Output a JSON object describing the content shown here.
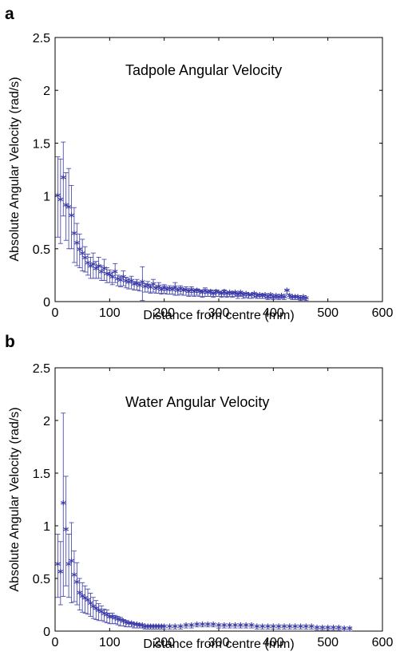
{
  "colors": {
    "series": "#3a3aa8",
    "axis": "#000000",
    "background": "#ffffff"
  },
  "chart_data": [
    {
      "panel": "a",
      "type": "scatter",
      "title": "Tadpole Angular Velocity",
      "xlabel": "Distance from centre (mm)",
      "ylabel": "Absolute Angular Velocity (rad/s)",
      "xlim": [
        0,
        600
      ],
      "ylim": [
        0,
        2.5
      ],
      "xticks": [
        "0",
        "100",
        "200",
        "300",
        "400",
        "500",
        "600"
      ],
      "yticks": [
        "0",
        "0.5",
        "1",
        "1.5",
        "2",
        "2.5"
      ],
      "marker": "*",
      "error_bars": true,
      "x": [
        5,
        10,
        15,
        20,
        25,
        30,
        35,
        40,
        45,
        50,
        55,
        60,
        65,
        70,
        75,
        80,
        85,
        90,
        95,
        100,
        105,
        110,
        115,
        120,
        125,
        130,
        135,
        140,
        145,
        150,
        155,
        160,
        165,
        170,
        175,
        180,
        185,
        190,
        195,
        200,
        205,
        210,
        215,
        220,
        225,
        230,
        235,
        240,
        245,
        250,
        255,
        260,
        265,
        270,
        275,
        280,
        285,
        290,
        295,
        300,
        305,
        310,
        315,
        320,
        325,
        330,
        335,
        340,
        345,
        350,
        355,
        360,
        365,
        370,
        375,
        380,
        385,
        390,
        395,
        400,
        405,
        410,
        415,
        420,
        425,
        430,
        435,
        440,
        445,
        450,
        455,
        460
      ],
      "y": [
        0.99,
        0.95,
        1.16,
        0.9,
        0.88,
        0.8,
        0.63,
        0.54,
        0.48,
        0.44,
        0.4,
        0.35,
        0.32,
        0.34,
        0.3,
        0.32,
        0.27,
        0.3,
        0.25,
        0.24,
        0.22,
        0.27,
        0.2,
        0.19,
        0.22,
        0.18,
        0.17,
        0.18,
        0.15,
        0.16,
        0.14,
        0.17,
        0.13,
        0.14,
        0.12,
        0.15,
        0.11,
        0.13,
        0.1,
        0.12,
        0.1,
        0.11,
        0.1,
        0.12,
        0.09,
        0.11,
        0.09,
        0.1,
        0.08,
        0.1,
        0.08,
        0.09,
        0.08,
        0.07,
        0.09,
        0.07,
        0.08,
        0.06,
        0.08,
        0.07,
        0.06,
        0.08,
        0.06,
        0.07,
        0.06,
        0.07,
        0.05,
        0.07,
        0.05,
        0.06,
        0.05,
        0.05,
        0.06,
        0.04,
        0.05,
        0.04,
        0.05,
        0.03,
        0.05,
        0.03,
        0.04,
        0.03,
        0.04,
        0.03,
        0.09,
        0.04,
        0.03,
        0.03,
        0.03,
        0.02,
        0.03,
        0.02
      ],
      "err": [
        0.38,
        0.4,
        0.35,
        0.32,
        0.38,
        0.3,
        0.26,
        0.2,
        0.16,
        0.15,
        0.12,
        0.1,
        0.1,
        0.12,
        0.08,
        0.1,
        0.07,
        0.1,
        0.07,
        0.06,
        0.06,
        0.09,
        0.05,
        0.05,
        0.07,
        0.05,
        0.05,
        0.06,
        0.04,
        0.05,
        0.04,
        0.16,
        0.04,
        0.05,
        0.04,
        0.06,
        0.03,
        0.05,
        0.03,
        0.04,
        0.03,
        0.04,
        0.03,
        0.06,
        0.03,
        0.04,
        0.03,
        0.04,
        0.03,
        0.04,
        0.03,
        0.03,
        0.03,
        0.03,
        0.04,
        0.02,
        0.03,
        0.02,
        0.03,
        0.02,
        0.02,
        0.03,
        0.02,
        0.02,
        0.02,
        0.02,
        0.02,
        0.02,
        0.02,
        0.02,
        0.02,
        0.02,
        0.02,
        0.01,
        0.02,
        0.01,
        0.02,
        0.01,
        0.02,
        0.01,
        0.01,
        0.01,
        0.01,
        0.01,
        0.02,
        0.01,
        0.01,
        0.01,
        0.01,
        0.01,
        0.01,
        0.01
      ]
    },
    {
      "panel": "b",
      "type": "scatter",
      "title": "Water Angular Velocity",
      "xlabel": "Distance from centre (mm)",
      "ylabel": "Absolute Angular Velocity (rad/s)",
      "xlim": [
        0,
        600
      ],
      "ylim": [
        0,
        2.5
      ],
      "xticks": [
        "0",
        "100",
        "200",
        "300",
        "400",
        "500",
        "600"
      ],
      "yticks": [
        "0",
        "0.5",
        "1",
        "1.5",
        "2",
        "2.5"
      ],
      "marker": "*",
      "error_bars": true,
      "x": [
        5,
        10,
        15,
        20,
        25,
        30,
        35,
        40,
        45,
        50,
        55,
        60,
        65,
        70,
        75,
        80,
        85,
        90,
        95,
        100,
        105,
        110,
        115,
        120,
        125,
        130,
        135,
        140,
        145,
        150,
        155,
        160,
        165,
        170,
        175,
        180,
        185,
        190,
        195,
        200,
        210,
        220,
        230,
        240,
        250,
        260,
        270,
        280,
        290,
        300,
        310,
        320,
        330,
        340,
        350,
        360,
        370,
        380,
        390,
        400,
        410,
        420,
        430,
        440,
        450,
        460,
        470,
        480,
        490,
        500,
        510,
        520,
        530,
        540
      ],
      "y": [
        0.62,
        0.55,
        1.2,
        0.95,
        0.62,
        0.65,
        0.52,
        0.45,
        0.35,
        0.32,
        0.3,
        0.28,
        0.25,
        0.22,
        0.2,
        0.18,
        0.17,
        0.15,
        0.14,
        0.12,
        0.12,
        0.11,
        0.1,
        0.09,
        0.08,
        0.07,
        0.06,
        0.06,
        0.05,
        0.05,
        0.04,
        0.04,
        0.03,
        0.03,
        0.03,
        0.03,
        0.03,
        0.03,
        0.03,
        0.03,
        0.03,
        0.03,
        0.03,
        0.04,
        0.04,
        0.05,
        0.05,
        0.05,
        0.05,
        0.04,
        0.04,
        0.04,
        0.04,
        0.04,
        0.04,
        0.04,
        0.03,
        0.03,
        0.03,
        0.03,
        0.03,
        0.03,
        0.03,
        0.03,
        0.03,
        0.03,
        0.03,
        0.02,
        0.02,
        0.02,
        0.02,
        0.02,
        0.01,
        0.01
      ],
      "err": [
        0.3,
        0.3,
        0.87,
        0.52,
        0.3,
        0.38,
        0.24,
        0.2,
        0.15,
        0.14,
        0.13,
        0.12,
        0.11,
        0.1,
        0.09,
        0.08,
        0.07,
        0.06,
        0.06,
        0.05,
        0.05,
        0.04,
        0.04,
        0.04,
        0.03,
        0.03,
        0.02,
        0.02,
        0.02,
        0.02,
        0.01,
        0.01,
        0.01,
        0.01,
        0.01,
        0.01,
        0.01,
        0.01,
        0.01,
        0.01,
        0.01,
        0.01,
        0.01,
        0.01,
        0.01,
        0.01,
        0.01,
        0.01,
        0.01,
        0.01,
        0.01,
        0.01,
        0.01,
        0.01,
        0.01,
        0.01,
        0.01,
        0.01,
        0.01,
        0.01,
        0.01,
        0.01,
        0.01,
        0.01,
        0.01,
        0.01,
        0.01,
        0.01,
        0.01,
        0.01,
        0.01,
        0.01,
        0.01,
        0.01
      ]
    }
  ]
}
